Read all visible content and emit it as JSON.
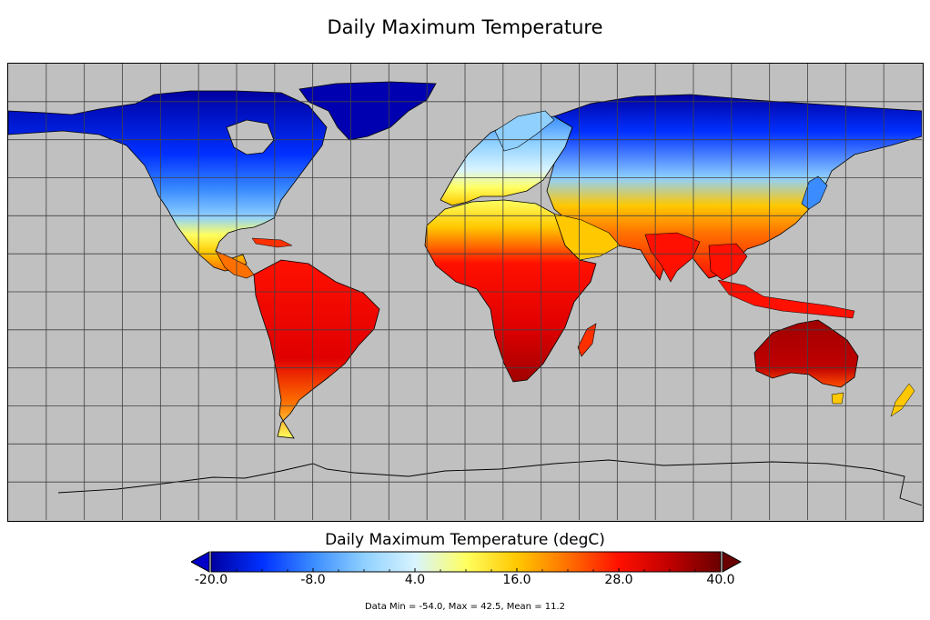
{
  "title": "Daily Maximum Temperature",
  "colorbar": {
    "title": "Daily Maximum Temperature (degC)",
    "ticks": [
      "-20.0",
      "-8.0",
      "4.0",
      "16.0",
      "28.0",
      "40.0"
    ],
    "min": -20,
    "max": 40,
    "stops": [
      "#0000a0",
      "#0030ff",
      "#3a8cff",
      "#8fd0ff",
      "#d8f4ff",
      "#ffff60",
      "#ffc800",
      "#ff7000",
      "#ff1000",
      "#c00000",
      "#6a0000"
    ],
    "under_color": "#0000c8",
    "over_color": "#6a0000"
  },
  "stats": "Data Min = -54.0, Max = 42.5, Mean = 11.2",
  "colors": {
    "ocean": "#c0c0c0",
    "grid": "#404040"
  }
}
